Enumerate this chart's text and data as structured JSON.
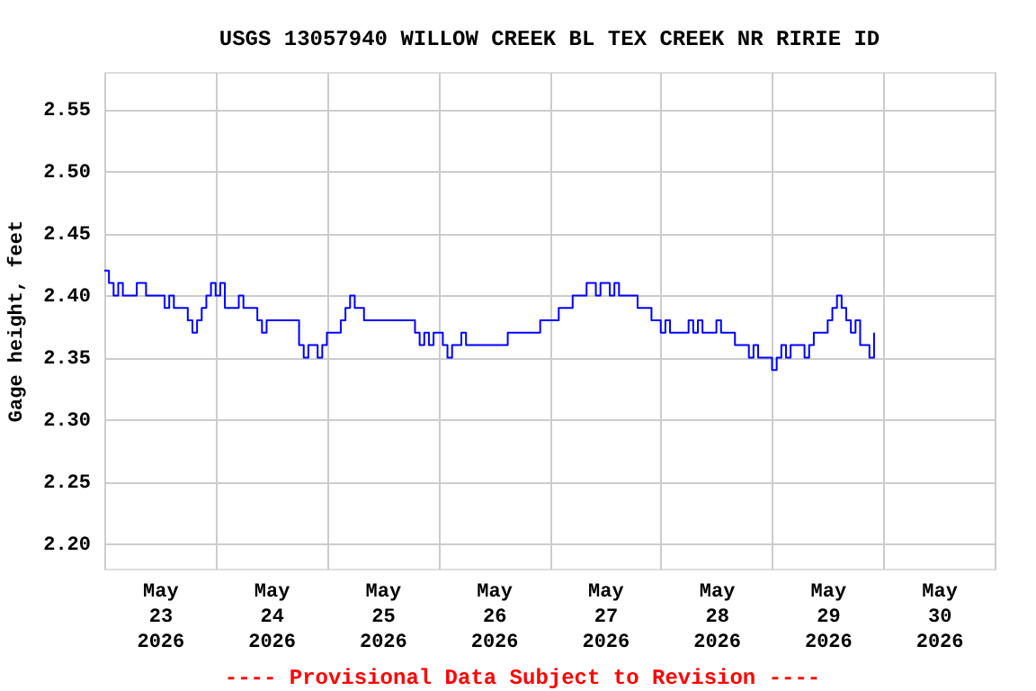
{
  "chart_data": {
    "type": "step",
    "title": "USGS 13057940 WILLOW CREEK BL TEX CREEK NR RIRIE ID",
    "ylabel": "Gage height, feet",
    "annotations": [
      "---- Provisional Data Subject to Revision ----"
    ],
    "x": [
      "2026-05-23T00:00",
      "2026-05-23T01:00",
      "2026-05-23T02:00",
      "2026-05-23T03:00",
      "2026-05-23T04:00",
      "2026-05-23T07:00",
      "2026-05-23T09:00",
      "2026-05-23T13:00",
      "2026-05-23T14:00",
      "2026-05-23T15:00",
      "2026-05-23T18:00",
      "2026-05-23T19:00",
      "2026-05-23T20:00",
      "2026-05-23T21:00",
      "2026-05-23T22:00",
      "2026-05-23T23:00",
      "2026-05-24T00:00",
      "2026-05-24T01:00",
      "2026-05-24T02:00",
      "2026-05-24T05:00",
      "2026-05-24T06:00",
      "2026-05-24T09:00",
      "2026-05-24T10:00",
      "2026-05-24T11:00",
      "2026-05-24T18:00",
      "2026-05-24T19:00",
      "2026-05-24T20:00",
      "2026-05-24T22:00",
      "2026-05-24T23:00",
      "2026-05-25T00:00",
      "2026-05-25T03:00",
      "2026-05-25T04:00",
      "2026-05-25T05:00",
      "2026-05-25T06:00",
      "2026-05-25T08:00",
      "2026-05-25T19:00",
      "2026-05-25T20:00",
      "2026-05-25T21:00",
      "2026-05-25T22:00",
      "2026-05-25T23:00",
      "2026-05-26T01:00",
      "2026-05-26T02:00",
      "2026-05-26T03:00",
      "2026-05-26T05:00",
      "2026-05-26T06:00",
      "2026-05-26T15:00",
      "2026-05-26T22:00",
      "2026-05-27T02:00",
      "2026-05-27T05:00",
      "2026-05-27T08:00",
      "2026-05-27T10:00",
      "2026-05-27T11:00",
      "2026-05-27T13:00",
      "2026-05-27T14:00",
      "2026-05-27T15:00",
      "2026-05-27T19:00",
      "2026-05-27T22:00",
      "2026-05-28T00:00",
      "2026-05-28T01:00",
      "2026-05-28T02:00",
      "2026-05-28T06:00",
      "2026-05-28T07:00",
      "2026-05-28T08:00",
      "2026-05-28T09:00",
      "2026-05-28T12:00",
      "2026-05-28T13:00",
      "2026-05-28T16:00",
      "2026-05-28T19:00",
      "2026-05-28T20:00",
      "2026-05-28T21:00",
      "2026-05-29T00:00",
      "2026-05-29T01:00",
      "2026-05-29T02:00",
      "2026-05-29T03:00",
      "2026-05-29T04:00",
      "2026-05-29T07:00",
      "2026-05-29T08:00",
      "2026-05-29T09:00",
      "2026-05-29T12:00",
      "2026-05-29T13:00",
      "2026-05-29T14:00",
      "2026-05-29T15:00",
      "2026-05-29T16:00",
      "2026-05-29T17:00",
      "2026-05-29T18:00",
      "2026-05-29T19:00",
      "2026-05-29T21:00",
      "2026-05-29T22:00"
    ],
    "series": [
      {
        "color": "#0000ff",
        "values": [
          2.42,
          2.41,
          2.4,
          2.41,
          2.4,
          2.41,
          2.4,
          2.39,
          2.4,
          2.39,
          2.38,
          2.37,
          2.38,
          2.39,
          2.4,
          2.41,
          2.4,
          2.41,
          2.39,
          2.4,
          2.39,
          2.38,
          2.37,
          2.38,
          2.36,
          2.35,
          2.36,
          2.35,
          2.36,
          2.37,
          2.38,
          2.39,
          2.4,
          2.39,
          2.38,
          2.37,
          2.36,
          2.37,
          2.36,
          2.37,
          2.36,
          2.35,
          2.36,
          2.37,
          2.36,
          2.37,
          2.38,
          2.39,
          2.4,
          2.41,
          2.4,
          2.41,
          2.4,
          2.41,
          2.4,
          2.39,
          2.38,
          2.37,
          2.38,
          2.37,
          2.38,
          2.37,
          2.38,
          2.37,
          2.38,
          2.37,
          2.36,
          2.35,
          2.36,
          2.35,
          2.34,
          2.35,
          2.36,
          2.35,
          2.36,
          2.35,
          2.36,
          2.37,
          2.38,
          2.39,
          2.4,
          2.39,
          2.38,
          2.37,
          2.38,
          2.36,
          2.35,
          2.37
        ]
      }
    ],
    "xlim": [
      "2026-05-23T00:00",
      "2026-05-31T00:00"
    ],
    "xticks": [
      {
        "value": "2026-05-23T00:00",
        "label": null
      },
      {
        "value": "2026-05-23T12:00",
        "label": "May\n23\n2026"
      },
      {
        "value": "2026-05-24T00:00",
        "label": null
      },
      {
        "value": "2026-05-24T12:00",
        "label": "May\n24\n2026"
      },
      {
        "value": "2026-05-25T00:00",
        "label": null
      },
      {
        "value": "2026-05-25T12:00",
        "label": "May\n25\n2026"
      },
      {
        "value": "2026-05-26T00:00",
        "label": null
      },
      {
        "value": "2026-05-26T12:00",
        "label": "May\n26\n2026"
      },
      {
        "value": "2026-05-27T00:00",
        "label": null
      },
      {
        "value": "2026-05-27T12:00",
        "label": "May\n27\n2026"
      },
      {
        "value": "2026-05-28T00:00",
        "label": null
      },
      {
        "value": "2026-05-28T12:00",
        "label": "May\n28\n2026"
      },
      {
        "value": "2026-05-29T00:00",
        "label": null
      },
      {
        "value": "2026-05-29T12:00",
        "label": "May\n29\n2026"
      },
      {
        "value": "2026-05-30T00:00",
        "label": null
      },
      {
        "value": "2026-05-30T12:00",
        "label": "May\n30\n2026"
      },
      {
        "value": "2026-05-31T00:00",
        "label": null
      }
    ],
    "ylim": [
      2.18,
      2.58
    ],
    "yticks": [
      {
        "value": 2.2,
        "label": "2.20"
      },
      {
        "value": 2.25,
        "label": "2.25"
      },
      {
        "value": 2.3,
        "label": "2.30"
      },
      {
        "value": 2.35,
        "label": "2.35"
      },
      {
        "value": 2.4,
        "label": "2.40"
      },
      {
        "value": 2.45,
        "label": "2.45"
      },
      {
        "value": 2.5,
        "label": "2.50"
      },
      {
        "value": 2.55,
        "label": "2.55"
      }
    ],
    "grid": true,
    "line_style": "solid"
  }
}
